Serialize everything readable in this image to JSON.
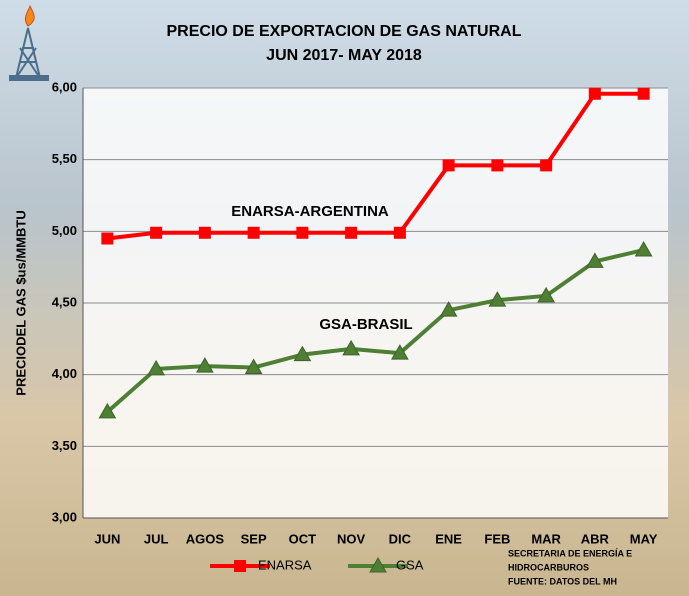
{
  "chart_data": {
    "type": "line",
    "title": "PRECIO DE EXPORTACION DE GAS NATURAL",
    "subtitle": "JUN 2017- MAY 2018",
    "y_label": "PRECIODEL GAS $us/MMBTU",
    "categories": [
      "JUN",
      "JUL",
      "AGOS",
      "SEP",
      "OCT",
      "NOV",
      "DIC",
      "ENE",
      "FEB",
      "MAR",
      "ABR",
      "MAY"
    ],
    "series": [
      {
        "name": "ENARSA",
        "color": "#ff0000",
        "marker": "square",
        "values": [
          4.95,
          4.99,
          4.99,
          4.99,
          4.99,
          4.99,
          4.99,
          5.46,
          5.46,
          5.46,
          5.96,
          5.96
        ]
      },
      {
        "name": "GSA",
        "color": "#4f7f34",
        "marker": "triangle",
        "values": [
          3.74,
          4.04,
          4.06,
          4.05,
          4.14,
          4.18,
          4.15,
          4.45,
          4.52,
          4.55,
          4.79,
          4.87
        ]
      }
    ],
    "ylim": [
      3,
      6
    ],
    "yticks": [
      {
        "value": 3,
        "label": "3,00"
      },
      {
        "value": 3.5,
        "label": "3,50"
      },
      {
        "value": 4,
        "label": "4,00"
      },
      {
        "value": 4.5,
        "label": "4,50"
      },
      {
        "value": 5,
        "label": "5,00"
      },
      {
        "value": 5.5,
        "label": "5,50"
      },
      {
        "value": 6,
        "label": "6,00"
      }
    ],
    "grid": true,
    "annotations": [
      "ENARSA-ARGENTINA",
      "GSA-BRASIL"
    ],
    "source": [
      "SECRETARIA DE ENERGÍA E",
      "HIDROCARBUROS",
      "FUENTE: DATOS DEL MH"
    ]
  }
}
